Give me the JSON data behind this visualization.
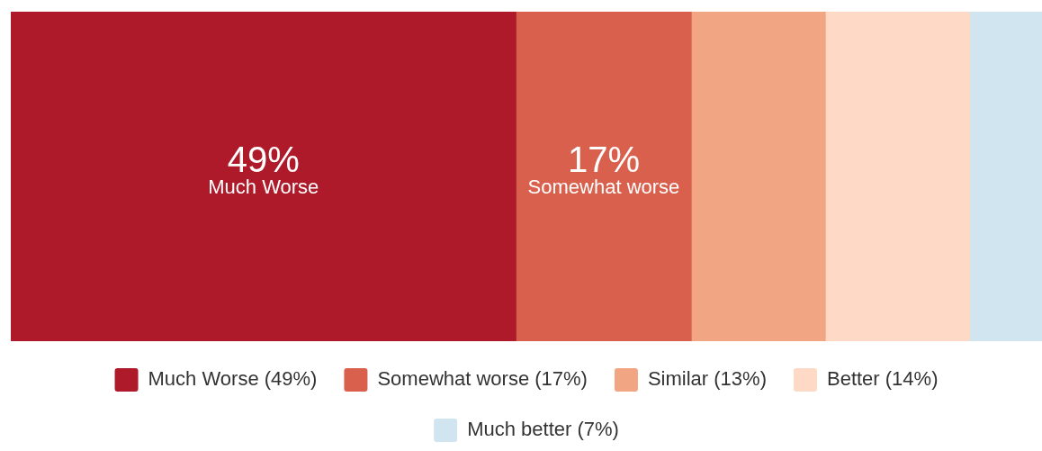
{
  "chart_data": {
    "type": "bar",
    "orientation": "horizontal",
    "stacked": true,
    "categories": [
      null
    ],
    "xlim": [
      0,
      100
    ],
    "legend": "bottom",
    "series": [
      {
        "name": "Much Worse (49%)",
        "color": "#ae1a2a",
        "values": [
          49
        ],
        "value_labels": [
          "49%"
        ]
      },
      {
        "name": "Somewhat worse (17%)",
        "color": "#d8604d",
        "values": [
          17
        ],
        "value_labels": [
          "17%"
        ]
      },
      {
        "name": "Similar (13%)",
        "color": "#f2a582",
        "values": [
          13
        ]
      },
      {
        "name": "Better (14%)",
        "color": "#fdd9c6",
        "values": [
          14
        ]
      },
      {
        "name": "Much better (7%)",
        "color": "#d1e5f0",
        "values": [
          7
        ]
      }
    ],
    "annotations": [
      "Much Worse",
      "Somewhat worse"
    ]
  }
}
